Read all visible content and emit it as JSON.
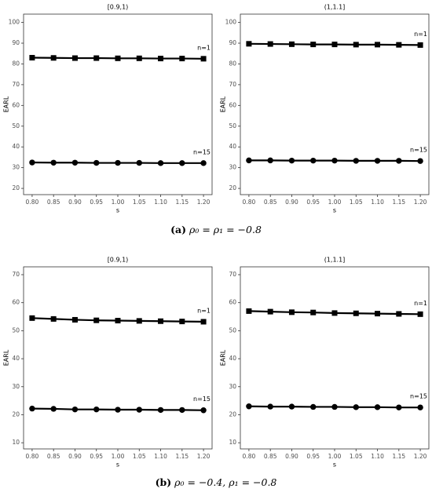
{
  "chart_data": [
    {
      "type": "line",
      "title": "[0.9,1)",
      "xlabel": "s",
      "ylabel": "EARL",
      "x": [
        0.8,
        0.85,
        0.9,
        0.95,
        1.0,
        1.05,
        1.1,
        1.15,
        1.2
      ],
      "xlim": [
        0.78,
        1.22
      ],
      "xticks": [
        {
          "value": 0.8,
          "label": "0.80"
        },
        {
          "value": 0.85,
          "label": "0.85"
        },
        {
          "value": 0.9,
          "label": "0.90"
        },
        {
          "value": 0.95,
          "label": "0.95"
        },
        {
          "value": 1.0,
          "label": "1.00"
        },
        {
          "value": 1.05,
          "label": "1.05"
        },
        {
          "value": 1.1,
          "label": "1.10"
        },
        {
          "value": 1.15,
          "label": "1.15"
        },
        {
          "value": 1.2,
          "label": "1.20"
        }
      ],
      "ylim": [
        17,
        104
      ],
      "yticks": [
        20,
        30,
        40,
        50,
        60,
        70,
        80,
        90,
        100
      ],
      "grid": false,
      "series": [
        {
          "name": "n=1",
          "color": "#000000",
          "marker": "square",
          "values": [
            83.0,
            82.9,
            82.8,
            82.8,
            82.7,
            82.7,
            82.6,
            82.6,
            82.5
          ]
        },
        {
          "name": "n=15",
          "color": "#000000",
          "marker": "circle",
          "values": [
            32.5,
            32.4,
            32.4,
            32.3,
            32.3,
            32.3,
            32.2,
            32.2,
            32.2
          ]
        }
      ]
    },
    {
      "type": "line",
      "title": "(1,1.1]",
      "xlabel": "s",
      "ylabel": "EARL",
      "x": [
        0.8,
        0.85,
        0.9,
        0.95,
        1.0,
        1.05,
        1.1,
        1.15,
        1.2
      ],
      "xlim": [
        0.78,
        1.22
      ],
      "xticks": [
        {
          "value": 0.8,
          "label": "0.80"
        },
        {
          "value": 0.85,
          "label": "0.85"
        },
        {
          "value": 0.9,
          "label": "0.90"
        },
        {
          "value": 0.95,
          "label": "0.95"
        },
        {
          "value": 1.0,
          "label": "1.00"
        },
        {
          "value": 1.05,
          "label": "1.05"
        },
        {
          "value": 1.1,
          "label": "1.10"
        },
        {
          "value": 1.15,
          "label": "1.15"
        },
        {
          "value": 1.2,
          "label": "1.20"
        }
      ],
      "ylim": [
        17,
        104
      ],
      "yticks": [
        20,
        30,
        40,
        50,
        60,
        70,
        80,
        90,
        100
      ],
      "grid": false,
      "series": [
        {
          "name": "n=1",
          "color": "#000000",
          "marker": "square",
          "values": [
            89.7,
            89.6,
            89.5,
            89.4,
            89.4,
            89.3,
            89.3,
            89.2,
            89.1
          ]
        },
        {
          "name": "n=15",
          "color": "#000000",
          "marker": "circle",
          "values": [
            33.5,
            33.5,
            33.4,
            33.4,
            33.4,
            33.3,
            33.3,
            33.3,
            33.2
          ]
        }
      ]
    },
    {
      "type": "line",
      "title": "[0.9,1)",
      "xlabel": "s",
      "ylabel": "EARL",
      "x": [
        0.8,
        0.85,
        0.9,
        0.95,
        1.0,
        1.05,
        1.1,
        1.15,
        1.2
      ],
      "xlim": [
        0.78,
        1.22
      ],
      "xticks": [
        {
          "value": 0.8,
          "label": "0.80"
        },
        {
          "value": 0.85,
          "label": "0.85"
        },
        {
          "value": 0.9,
          "label": "0.90"
        },
        {
          "value": 0.95,
          "label": "0.95"
        },
        {
          "value": 1.0,
          "label": "1.00"
        },
        {
          "value": 1.05,
          "label": "1.05"
        },
        {
          "value": 1.1,
          "label": "1.10"
        },
        {
          "value": 1.15,
          "label": "1.15"
        },
        {
          "value": 1.2,
          "label": "1.20"
        }
      ],
      "ylim": [
        7.8,
        72.8
      ],
      "yticks": [
        10,
        20,
        30,
        40,
        50,
        60,
        70
      ],
      "grid": false,
      "series": [
        {
          "name": "n=1",
          "color": "#000000",
          "marker": "square",
          "values": [
            54.5,
            54.2,
            53.9,
            53.7,
            53.6,
            53.5,
            53.4,
            53.3,
            53.2
          ]
        },
        {
          "name": "n=15",
          "color": "#000000",
          "marker": "circle",
          "values": [
            22.2,
            22.1,
            21.9,
            21.9,
            21.8,
            21.8,
            21.7,
            21.7,
            21.6
          ]
        }
      ]
    },
    {
      "type": "line",
      "title": "(1,1.1]",
      "xlabel": "s",
      "ylabel": "EARL",
      "x": [
        0.8,
        0.85,
        0.9,
        0.95,
        1.0,
        1.05,
        1.1,
        1.15,
        1.2
      ],
      "xlim": [
        0.78,
        1.22
      ],
      "xticks": [
        {
          "value": 0.8,
          "label": "0.80"
        },
        {
          "value": 0.85,
          "label": "0.85"
        },
        {
          "value": 0.9,
          "label": "0.90"
        },
        {
          "value": 0.95,
          "label": "0.95"
        },
        {
          "value": 1.0,
          "label": "1.00"
        },
        {
          "value": 1.05,
          "label": "1.05"
        },
        {
          "value": 1.1,
          "label": "1.10"
        },
        {
          "value": 1.15,
          "label": "1.15"
        },
        {
          "value": 1.2,
          "label": "1.20"
        }
      ],
      "ylim": [
        7.8,
        72.8
      ],
      "yticks": [
        10,
        20,
        30,
        40,
        50,
        60,
        70
      ],
      "grid": false,
      "series": [
        {
          "name": "n=1",
          "color": "#000000",
          "marker": "square",
          "values": [
            57.0,
            56.8,
            56.6,
            56.5,
            56.3,
            56.2,
            56.1,
            56.0,
            55.9
          ]
        },
        {
          "name": "n=15",
          "color": "#000000",
          "marker": "circle",
          "values": [
            23.0,
            22.9,
            22.9,
            22.8,
            22.8,
            22.7,
            22.7,
            22.6,
            22.6
          ]
        }
      ]
    }
  ],
  "captions": [
    {
      "label": "(a)",
      "text": "ρ₀ = ρ₁ = −0.8"
    },
    {
      "label": "(b)",
      "text": "ρ₀ = −0.4, ρ₁ = −0.8"
    }
  ]
}
